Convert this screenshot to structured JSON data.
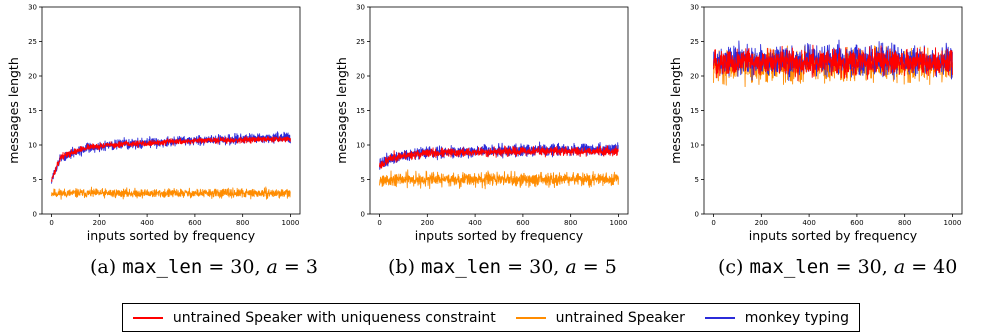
{
  "chart_data": [
    {
      "type": "line",
      "caption": {
        "prefix": "(a) ",
        "code": "max_len",
        "eq": " = 30, ",
        "var": "a",
        "tail": " = 3"
      },
      "xlabel": "inputs sorted by frequency",
      "ylabel": "messages length",
      "xlim": [
        0,
        1000
      ],
      "ylim": [
        0,
        30
      ],
      "xticks": [
        0,
        200,
        400,
        600,
        800,
        1000
      ],
      "yticks": [
        0,
        5,
        10,
        15,
        20,
        25,
        30
      ],
      "series": [
        {
          "key": "speaker",
          "color": "#ff8c00",
          "base": [
            [
              0,
              3
            ],
            [
              1000,
              3
            ]
          ],
          "noise": 0.45,
          "seed": 11
        },
        {
          "key": "monkey",
          "color": "#2b2bd9",
          "base": [
            [
              0,
              5
            ],
            [
              40,
              8.2
            ],
            [
              150,
              9.6
            ],
            [
              300,
              10.1
            ],
            [
              600,
              10.7
            ],
            [
              1000,
              11.1
            ]
          ],
          "noise": 0.5,
          "seed": 12
        },
        {
          "key": "unique",
          "color": "#ff0000",
          "base": [
            [
              0,
              5
            ],
            [
              40,
              8.3
            ],
            [
              150,
              9.7
            ],
            [
              300,
              10.1
            ],
            [
              600,
              10.6
            ],
            [
              1000,
              10.9
            ]
          ],
          "noise": 0.3,
          "seed": 13
        }
      ]
    },
    {
      "type": "line",
      "caption": {
        "prefix": "(b) ",
        "code": "max_len",
        "eq": " = 30, ",
        "var": "a",
        "tail": " = 5"
      },
      "xlabel": "inputs sorted by frequency",
      "ylabel": "messages length",
      "xlim": [
        0,
        1000
      ],
      "ylim": [
        0,
        30
      ],
      "xticks": [
        0,
        200,
        400,
        600,
        800,
        1000
      ],
      "yticks": [
        0,
        5,
        10,
        15,
        20,
        25,
        30
      ],
      "series": [
        {
          "key": "speaker",
          "color": "#ff8c00",
          "base": [
            [
              0,
              5
            ],
            [
              1000,
              5
            ]
          ],
          "noise": 0.7,
          "seed": 21
        },
        {
          "key": "monkey",
          "color": "#2b2bd9",
          "base": [
            [
              0,
              7.2
            ],
            [
              60,
              8.3
            ],
            [
              200,
              8.9
            ],
            [
              600,
              9.3
            ],
            [
              1000,
              9.4
            ]
          ],
          "noise": 0.6,
          "seed": 22
        },
        {
          "key": "unique",
          "color": "#ff0000",
          "base": [
            [
              0,
              7.0
            ],
            [
              60,
              8.3
            ],
            [
              200,
              8.8
            ],
            [
              600,
              9.1
            ],
            [
              1000,
              9.1
            ]
          ],
          "noise": 0.45,
          "seed": 23
        }
      ]
    },
    {
      "type": "line",
      "caption": {
        "prefix": "(c) ",
        "code": "max_len",
        "eq": " = 30, ",
        "var": "a",
        "tail": " = 40"
      },
      "xlabel": "inputs sorted by frequency",
      "ylabel": "messages length",
      "xlim": [
        0,
        1000
      ],
      "ylim": [
        0,
        30
      ],
      "xticks": [
        0,
        200,
        400,
        600,
        800,
        1000
      ],
      "yticks": [
        0,
        5,
        10,
        15,
        20,
        25,
        30
      ],
      "series": [
        {
          "key": "speaker",
          "color": "#ff8c00",
          "base": [
            [
              0,
              21.5
            ],
            [
              1000,
              21.5
            ]
          ],
          "noise": 1.6,
          "seed": 31
        },
        {
          "key": "monkey",
          "color": "#2b2bd9",
          "base": [
            [
              0,
              22.2
            ],
            [
              1000,
              22.2
            ]
          ],
          "noise": 1.5,
          "seed": 32
        },
        {
          "key": "unique",
          "color": "#ff0000",
          "base": [
            [
              0,
              22.0
            ],
            [
              1000,
              22.0
            ]
          ],
          "noise": 1.3,
          "seed": 33
        }
      ]
    }
  ],
  "legend": [
    {
      "key": "unique",
      "label": "untrained Speaker with uniqueness constraint",
      "color": "#ff0000"
    },
    {
      "key": "speaker",
      "label": "untrained Speaker",
      "color": "#ff8c00"
    },
    {
      "key": "monkey",
      "label": "monkey typing",
      "color": "#2b2bd9"
    }
  ]
}
